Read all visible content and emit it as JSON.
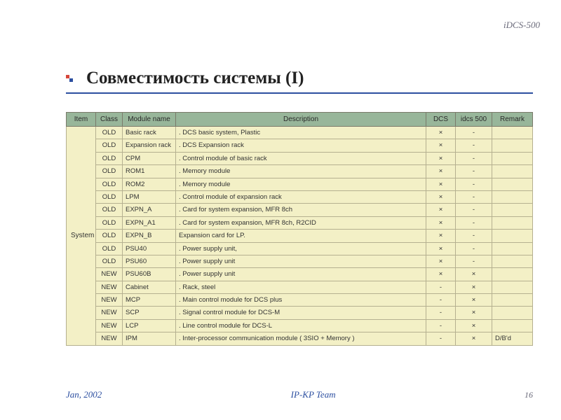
{
  "product_label": "iDCS-500",
  "slide_title": "Совместимость системы (I)",
  "footer": {
    "date": "Jan, 2002",
    "team": "IP-KP Team",
    "page": "16"
  },
  "table": {
    "headers": {
      "item": "Item",
      "class": "Class",
      "module": "Module name",
      "desc": "Description",
      "dcs": "DCS",
      "idcs": "idcs 500",
      "remark": "Remark"
    },
    "item_label": "System",
    "rows": [
      {
        "class": "OLD",
        "module": "Basic rack",
        "desc": ". DCS basic system, Plastic",
        "dcs": "×",
        "idcs": "-",
        "remark": ""
      },
      {
        "class": "OLD",
        "module": "Expansion rack",
        "desc": ". DCS Expansion rack",
        "dcs": "×",
        "idcs": "-",
        "remark": ""
      },
      {
        "class": "OLD",
        "module": "CPM",
        "desc": ". Control module of basic rack",
        "dcs": "×",
        "idcs": "-",
        "remark": ""
      },
      {
        "class": "OLD",
        "module": "ROM1",
        "desc": ". Memory module",
        "dcs": "×",
        "idcs": "-",
        "remark": ""
      },
      {
        "class": "OLD",
        "module": "ROM2",
        "desc": ". Memory module",
        "dcs": "×",
        "idcs": "-",
        "remark": ""
      },
      {
        "class": "OLD",
        "module": "LPM",
        "desc": ". Control module of expansion rack",
        "dcs": "×",
        "idcs": "-",
        "remark": ""
      },
      {
        "class": "OLD",
        "module": "EXPN_A",
        "desc": ". Card for system expansion, MFR 8ch",
        "dcs": "×",
        "idcs": "-",
        "remark": ""
      },
      {
        "class": "OLD",
        "module": "EXPN_A1",
        "desc": ". Card for system expansion, MFR 8ch, R2CID",
        "dcs": "×",
        "idcs": "-",
        "remark": ""
      },
      {
        "class": "OLD",
        "module": "EXPN_B",
        "desc": "  Expansion card for LP.",
        "dcs": "×",
        "idcs": "-",
        "remark": ""
      },
      {
        "class": "OLD",
        "module": "PSU40",
        "desc": ". Power supply unit,",
        "dcs": "×",
        "idcs": "-",
        "remark": ""
      },
      {
        "class": "OLD",
        "module": "PSU60",
        "desc": ". Power supply unit",
        "dcs": "×",
        "idcs": "-",
        "remark": ""
      },
      {
        "class": "NEW",
        "module": "PSU60B",
        "desc": ". Power supply unit",
        "dcs": "×",
        "idcs": "×",
        "remark": ""
      },
      {
        "class": "NEW",
        "module": "Cabinet",
        "desc": ". Rack, steel",
        "dcs": "-",
        "idcs": "×",
        "remark": ""
      },
      {
        "class": "NEW",
        "module": "MCP",
        "desc": ". Main control module for DCS plus",
        "dcs": "-",
        "idcs": "×",
        "remark": ""
      },
      {
        "class": "NEW",
        "module": "SCP",
        "desc": ". Signal control module for DCS-M",
        "dcs": "-",
        "idcs": "×",
        "remark": ""
      },
      {
        "class": "NEW",
        "module": "LCP",
        "desc": ". Line control module for DCS-L",
        "dcs": "-",
        "idcs": "×",
        "remark": ""
      },
      {
        "class": "NEW",
        "module": "IPM",
        "desc": ". Inter-processor communication module ( 3SIO + Memory )",
        "dcs": "-",
        "idcs": "×",
        "remark": "D/B'd"
      }
    ]
  },
  "style": {
    "colors": {
      "page_bg": "#ffffff",
      "header_bg": "#98b69a",
      "cell_bg": "#f3f0c6",
      "border": "#b5b090",
      "accent_blue": "#2c4fa0",
      "accent_red": "#d6463a",
      "muted_text": "#6a6a7a"
    },
    "font_sizes": {
      "title_pt": 25,
      "table_pt": 10,
      "footer_pt": 13
    }
  }
}
